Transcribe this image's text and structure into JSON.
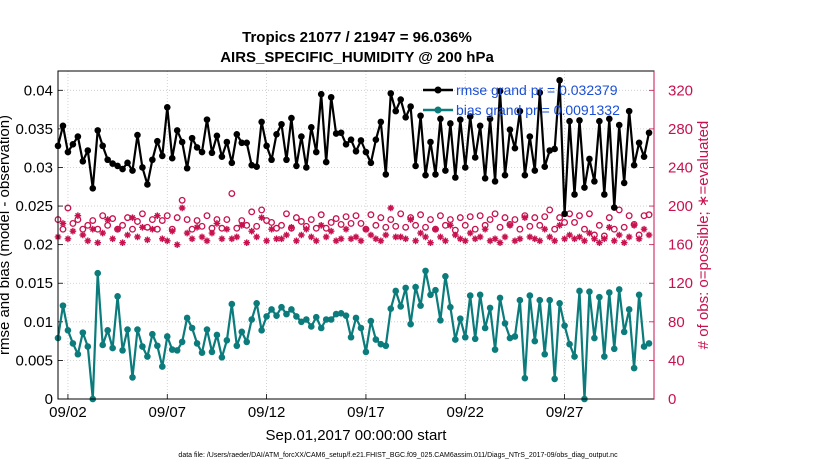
{
  "chart_data": {
    "type": "line",
    "title": "Tropics 21077 / 21947 = 96.036%",
    "subtitle": "AIRS_SPECIFIC_HUMIDITY @ 200 hPa",
    "xlabel": "Sep.01,2017 00:00:00 start",
    "ylabel": "rmse and bias (model - observation)",
    "ylabel_right": "# of obs: o=possible; ∗=evaluated",
    "footnote": "data file: /Users/raeder/DAI/ATM_forcXX/CAM6_setup/f.e21.FHIST_BGC.f09_025.CAM6assim.011/Diags_NTrS_2017-09/obs_diag_output.nc",
    "xlim": [
      1.5,
      31.5
    ],
    "ylim": [
      0,
      0.0425
    ],
    "ylim_right": [
      0,
      340
    ],
    "grid": true,
    "x_ticks": [
      2,
      7,
      12,
      17,
      22,
      27
    ],
    "x_tick_labels": [
      "09/02",
      "09/07",
      "09/12",
      "09/17",
      "09/22",
      "09/27"
    ],
    "y_ticks": [
      0,
      0.005,
      0.01,
      0.015,
      0.02,
      0.025,
      0.03,
      0.035,
      0.04
    ],
    "y_tick_labels": [
      "0",
      "0.005",
      "0.01",
      "0.015",
      "0.02",
      "0.025",
      "0.03",
      "0.035",
      "0.04"
    ],
    "y_right_ticks": [
      0,
      40,
      80,
      120,
      160,
      200,
      240,
      280,
      320
    ],
    "y_right_tick_labels": [
      "0",
      "40",
      "80",
      "120",
      "160",
      "200",
      "240",
      "280",
      "320"
    ],
    "legend": [
      {
        "label": "rmse grand pr = 0.032379",
        "color": "#000000"
      },
      {
        "label": "bias grand pr = 0.0091332",
        "color": "#0b7b7b"
      }
    ],
    "colors": {
      "rmse": "#000000",
      "bias": "#0b7b7b",
      "obs": "#c8114f"
    },
    "series": [
      {
        "name": "rmse",
        "x": [
          1.5,
          1.75,
          2.0,
          2.25,
          2.5,
          2.75,
          3.0,
          3.25,
          3.5,
          3.75,
          4.0,
          4.25,
          4.5,
          4.75,
          5.0,
          5.25,
          5.5,
          5.75,
          6.0,
          6.25,
          6.5,
          6.75,
          7.0,
          7.25,
          7.5,
          7.75,
          8.0,
          8.25,
          8.5,
          8.75,
          9.0,
          9.25,
          9.5,
          9.75,
          10.0,
          10.25,
          10.5,
          10.75,
          11.0,
          11.25,
          11.5,
          11.75,
          12.0,
          12.25,
          12.5,
          12.75,
          13.0,
          13.25,
          13.5,
          13.75,
          14.0,
          14.25,
          14.5,
          14.75,
          15.0,
          15.25,
          15.5,
          15.75,
          16.0,
          16.25,
          16.5,
          16.75,
          17.0,
          17.25,
          17.5,
          17.75,
          18.0,
          18.25,
          18.5,
          18.75,
          19.0,
          19.25,
          19.5,
          19.75,
          20.0,
          20.25,
          20.5,
          20.75,
          21.0,
          21.25,
          21.5,
          21.75,
          22.0,
          22.25,
          22.5,
          22.75,
          23.0,
          23.25,
          23.5,
          23.75,
          24.0,
          24.25,
          24.5,
          24.75,
          25.0,
          25.25,
          25.5,
          25.75,
          26.0,
          26.25,
          26.5,
          26.75,
          27.0,
          27.25,
          27.5,
          27.75,
          28.0,
          28.25,
          28.5,
          28.75,
          29.0,
          29.25,
          29.5,
          29.75,
          30.0,
          30.25,
          30.5,
          30.75,
          31.0,
          31.25
        ],
        "values": [
          0.0328,
          0.0354,
          0.032,
          0.033,
          0.034,
          0.0308,
          0.0322,
          0.0273,
          0.0348,
          0.0328,
          0.031,
          0.0305,
          0.0302,
          0.0298,
          0.0306,
          0.0296,
          0.0342,
          0.03,
          0.0278,
          0.031,
          0.0334,
          0.0315,
          0.0378,
          0.0312,
          0.0348,
          0.0333,
          0.0299,
          0.0338,
          0.0326,
          0.032,
          0.0362,
          0.0319,
          0.0341,
          0.0314,
          0.0333,
          0.0306,
          0.0343,
          0.0332,
          0.0332,
          0.0303,
          0.0301,
          0.0359,
          0.0328,
          0.031,
          0.0343,
          0.0356,
          0.031,
          0.0364,
          0.0302,
          0.034,
          0.03,
          0.0352,
          0.032,
          0.0395,
          0.0307,
          0.0391,
          0.0344,
          0.0345,
          0.033,
          0.0336,
          0.0321,
          0.0335,
          0.032,
          0.0306,
          0.0336,
          0.0359,
          0.0291,
          0.0396,
          0.0373,
          0.0388,
          0.0365,
          0.0379,
          0.0302,
          0.0367,
          0.029,
          0.0333,
          0.0291,
          0.0363,
          0.0296,
          0.0357,
          0.0287,
          0.0362,
          0.03,
          0.0366,
          0.0313,
          0.0354,
          0.0286,
          0.0363,
          0.0282,
          0.0399,
          0.029,
          0.0349,
          0.0325,
          0.0373,
          0.029,
          0.034,
          0.0296,
          0.0397,
          0.0301,
          0.0322,
          0.0324,
          0.0413,
          0.024,
          0.036,
          0.0265,
          0.0361,
          0.0274,
          0.0311,
          0.0282,
          0.036,
          0.0265,
          0.0363,
          0.0248,
          0.0355,
          0.028,
          0.0373,
          0.0303,
          0.0332,
          0.0314,
          0.0345
        ]
      },
      {
        "name": "bias",
        "x": [
          1.5,
          1.75,
          2.0,
          2.25,
          2.5,
          2.75,
          3.0,
          3.25,
          3.5,
          3.75,
          4.0,
          4.25,
          4.5,
          4.75,
          5.0,
          5.25,
          5.5,
          5.75,
          6.0,
          6.25,
          6.5,
          6.75,
          7.0,
          7.25,
          7.5,
          7.75,
          8.0,
          8.25,
          8.5,
          8.75,
          9.0,
          9.25,
          9.5,
          9.75,
          10.0,
          10.25,
          10.5,
          10.75,
          11.0,
          11.25,
          11.5,
          11.75,
          12.0,
          12.25,
          12.5,
          12.75,
          13.0,
          13.25,
          13.5,
          13.75,
          14.0,
          14.25,
          14.5,
          14.75,
          15.0,
          15.25,
          15.5,
          15.75,
          16.0,
          16.25,
          16.5,
          16.75,
          17.0,
          17.25,
          17.5,
          17.75,
          18.0,
          18.25,
          18.5,
          18.75,
          19.0,
          19.25,
          19.5,
          19.75,
          20.0,
          20.25,
          20.5,
          20.75,
          21.0,
          21.25,
          21.5,
          21.75,
          22.0,
          22.25,
          22.5,
          22.75,
          23.0,
          23.25,
          23.5,
          23.75,
          24.0,
          24.25,
          24.5,
          24.75,
          25.0,
          25.25,
          25.5,
          25.75,
          26.0,
          26.25,
          26.5,
          26.75,
          27.0,
          27.25,
          27.5,
          27.75,
          28.0,
          28.25,
          28.5,
          28.75,
          29.0,
          29.25,
          29.5,
          29.75,
          30.0,
          30.25,
          30.5,
          30.75,
          31.0,
          31.25
        ],
        "values": [
          0.0079,
          0.0121,
          0.0089,
          0.0072,
          0.0058,
          0.0086,
          0.0068,
          0.0,
          0.0163,
          0.007,
          0.0089,
          0.0066,
          0.0133,
          0.0063,
          0.009,
          0.0028,
          0.009,
          0.0068,
          0.0055,
          0.0084,
          0.0069,
          0.0042,
          0.0081,
          0.0064,
          0.0063,
          0.0074,
          0.0105,
          0.0092,
          0.0072,
          0.006,
          0.009,
          0.0061,
          0.0083,
          0.0054,
          0.0076,
          0.0123,
          0.0069,
          0.0087,
          0.0074,
          0.0103,
          0.0124,
          0.0089,
          0.0107,
          0.0116,
          0.0108,
          0.0119,
          0.011,
          0.0116,
          0.0107,
          0.01,
          0.0103,
          0.0094,
          0.0106,
          0.0092,
          0.0103,
          0.0103,
          0.011,
          0.0111,
          0.0108,
          0.008,
          0.0105,
          0.0092,
          0.0061,
          0.0101,
          0.0077,
          0.0071,
          0.0069,
          0.0117,
          0.014,
          0.012,
          0.0144,
          0.0097,
          0.0145,
          0.0121,
          0.0166,
          0.0135,
          0.0141,
          0.0102,
          0.0159,
          0.0119,
          0.0077,
          0.0104,
          0.008,
          0.0134,
          0.0078,
          0.0135,
          0.0092,
          0.0118,
          0.0064,
          0.0131,
          0.0098,
          0.0079,
          0.0081,
          0.0128,
          0.0027,
          0.0134,
          0.0075,
          0.0128,
          0.0058,
          0.0128,
          0.0026,
          0.0124,
          0.0095,
          0.0071,
          0.0055,
          0.014,
          0.0,
          0.0139,
          0.0079,
          0.0132,
          0.0055,
          0.0138,
          0.0065,
          0.0142,
          0.0087,
          0.0116,
          0.004,
          0.0135,
          0.0068,
          0.0072
        ]
      },
      {
        "name": "obs possible",
        "axis": "right",
        "x": [
          1.5,
          1.75,
          2.0,
          2.25,
          2.5,
          2.75,
          3.0,
          3.25,
          3.5,
          3.75,
          4.0,
          4.25,
          4.5,
          4.75,
          5.0,
          5.25,
          5.5,
          5.75,
          6.0,
          6.25,
          6.5,
          6.75,
          7.0,
          7.25,
          7.5,
          7.75,
          8.0,
          8.25,
          8.5,
          8.75,
          9.0,
          9.25,
          9.5,
          9.75,
          10.0,
          10.25,
          10.5,
          10.75,
          11.0,
          11.25,
          11.5,
          11.75,
          12.0,
          12.25,
          12.5,
          12.75,
          13.0,
          13.25,
          13.5,
          13.75,
          14.0,
          14.25,
          14.5,
          14.75,
          15.0,
          15.25,
          15.5,
          15.75,
          16.0,
          16.25,
          16.5,
          16.75,
          17.0,
          17.25,
          17.5,
          17.75,
          18.0,
          18.25,
          18.5,
          18.75,
          19.0,
          19.25,
          19.5,
          19.75,
          20.0,
          20.25,
          20.5,
          20.75,
          21.0,
          21.25,
          21.5,
          21.75,
          22.0,
          22.25,
          22.5,
          22.75,
          23.0,
          23.25,
          23.5,
          23.75,
          24.0,
          24.25,
          24.5,
          24.75,
          25.0,
          25.25,
          25.5,
          25.75,
          26.0,
          26.25,
          26.5,
          26.75,
          27.0,
          27.25,
          27.5,
          27.75,
          28.0,
          28.25,
          28.5,
          28.75,
          29.0,
          29.25,
          29.5,
          29.75,
          30.0,
          30.25,
          30.5,
          30.75,
          31.0,
          31.25
        ],
        "values": [
          186,
          176,
          198,
          182,
          186,
          176,
          180,
          185,
          176,
          190,
          180,
          187,
          176,
          180,
          188,
          176,
          184,
          192,
          178,
          186,
          176,
          185,
          190,
          176,
          188,
          206,
          186,
          176,
          185,
          179,
          190,
          177,
          186,
          177,
          186,
          213,
          177,
          185,
          180,
          194,
          179,
          196,
          185,
          183,
          177,
          180,
          192,
          177,
          188,
          184,
          179,
          186,
          177,
          191,
          177,
          183,
          187,
          181,
          189,
          182,
          190,
          182,
          176,
          191,
          180,
          188,
          178,
          186,
          179,
          192,
          178,
          188,
          180,
          191,
          178,
          186,
          176,
          190,
          180,
          186,
          175,
          188,
          180,
          189,
          176,
          190,
          180,
          186,
          192,
          178,
          188,
          181,
          186,
          176,
          190,
          179,
          188,
          180,
          189,
          196,
          176,
          188,
          183,
          192,
          183,
          190,
          176,
          192,
          170,
          180,
          169,
          188,
          176,
          196,
          178,
          190,
          181,
          170,
          190,
          191
        ]
      },
      {
        "name": "obs evaluated",
        "axis": "right",
        "x": [
          1.5,
          1.75,
          2.0,
          2.25,
          2.5,
          2.75,
          3.0,
          3.25,
          3.5,
          3.75,
          4.0,
          4.25,
          4.5,
          4.75,
          5.0,
          5.25,
          5.5,
          5.75,
          6.0,
          6.25,
          6.5,
          6.75,
          7.0,
          7.25,
          7.5,
          7.75,
          8.0,
          8.25,
          8.5,
          8.75,
          9.0,
          9.25,
          9.5,
          9.75,
          10.0,
          10.25,
          10.5,
          10.75,
          11.0,
          11.25,
          11.5,
          11.75,
          12.0,
          12.25,
          12.5,
          12.75,
          13.0,
          13.25,
          13.5,
          13.75,
          14.0,
          14.25,
          14.5,
          14.75,
          15.0,
          15.25,
          15.5,
          15.75,
          16.0,
          16.25,
          16.5,
          16.75,
          17.0,
          17.25,
          17.5,
          17.75,
          18.0,
          18.25,
          18.5,
          18.75,
          19.0,
          19.25,
          19.5,
          19.75,
          20.0,
          20.25,
          20.5,
          20.75,
          21.0,
          21.25,
          21.5,
          21.75,
          22.0,
          22.25,
          22.5,
          22.75,
          23.0,
          23.25,
          23.5,
          23.75,
          24.0,
          24.25,
          24.5,
          24.75,
          25.0,
          25.25,
          25.5,
          25.75,
          26.0,
          26.25,
          26.5,
          26.75,
          27.0,
          27.25,
          27.5,
          27.75,
          28.0,
          28.25,
          28.5,
          28.75,
          29.0,
          29.25,
          29.5,
          29.75,
          30.0,
          30.25,
          30.5,
          30.75,
          31.0,
          31.25
        ],
        "values": [
          168,
          182,
          166,
          174,
          190,
          170,
          164,
          176,
          162,
          172,
          186,
          166,
          176,
          162,
          170,
          188,
          168,
          178,
          165,
          176,
          190,
          166,
          164,
          174,
          160,
          198,
          172,
          166,
          178,
          168,
          164,
          172,
          182,
          166,
          176,
          166,
          168,
          180,
          162,
          174,
          168,
          188,
          164,
          176,
          166,
          166,
          170,
          178,
          164,
          170,
          176,
          168,
          164,
          180,
          168,
          174,
          164,
          166,
          176,
          166,
          168,
          164,
          176,
          170,
          166,
          164,
          170,
          198,
          168,
          168,
          166,
          186,
          164,
          172,
          168,
          162,
          176,
          168,
          164,
          180,
          170,
          166,
          164,
          172,
          166,
          168,
          176,
          164,
          166,
          162,
          168,
          180,
          164,
          166,
          188,
          168,
          166,
          164,
          176,
          168,
          164,
          180,
          166,
          170,
          166,
          168,
          164,
          172,
          166,
          162,
          166,
          178,
          164,
          170,
          162,
          168,
          180,
          166,
          176,
          170
        ]
      }
    ]
  }
}
